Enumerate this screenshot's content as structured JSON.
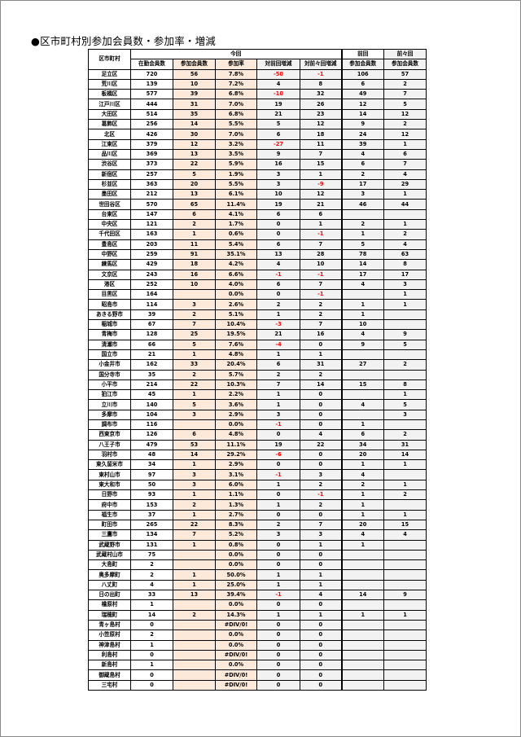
{
  "title": "●区市町村別参加会員数・参加率・増減",
  "header": {
    "municipality": "区市町村",
    "current": "今回",
    "previous": "前回",
    "before_previous": "前々回",
    "columns": [
      "在勤会員数",
      "参加会員数",
      "参加率",
      "対前回増減",
      "対前々回増減",
      "参加会員数",
      "参加会員数"
    ]
  },
  "colors": {
    "participation_fill": "#fde9d9",
    "change_fill": "#f2f2f2",
    "negative_text": "#ff0000"
  },
  "rows": [
    [
      "足立区",
      "720",
      "56",
      "7.8%",
      "-50",
      "-1",
      "106",
      "57"
    ],
    [
      "荒川区",
      "139",
      "10",
      "7.2%",
      "4",
      "8",
      "6",
      "2"
    ],
    [
      "板橋区",
      "577",
      "39",
      "6.8%",
      "-10",
      "32",
      "49",
      "7"
    ],
    [
      "江戸川区",
      "444",
      "31",
      "7.0%",
      "19",
      "26",
      "12",
      "5"
    ],
    [
      "大田区",
      "514",
      "35",
      "6.8%",
      "21",
      "23",
      "14",
      "12"
    ],
    [
      "葛飾区",
      "256",
      "14",
      "5.5%",
      "5",
      "12",
      "9",
      "2"
    ],
    [
      "北区",
      "426",
      "30",
      "7.0%",
      "6",
      "18",
      "24",
      "12"
    ],
    [
      "江東区",
      "379",
      "12",
      "3.2%",
      "-27",
      "11",
      "39",
      "1"
    ],
    [
      "品川区",
      "369",
      "13",
      "3.5%",
      "9",
      "7",
      "4",
      "6"
    ],
    [
      "渋谷区",
      "373",
      "22",
      "5.9%",
      "16",
      "15",
      "6",
      "7"
    ],
    [
      "新宿区",
      "257",
      "5",
      "1.9%",
      "3",
      "1",
      "2",
      "4"
    ],
    [
      "杉並区",
      "363",
      "20",
      "5.5%",
      "3",
      "-9",
      "17",
      "29"
    ],
    [
      "墨田区",
      "212",
      "13",
      "6.1%",
      "10",
      "12",
      "3",
      "1"
    ],
    [
      "世田谷区",
      "570",
      "65",
      "11.4%",
      "19",
      "21",
      "46",
      "44"
    ],
    [
      "台東区",
      "147",
      "6",
      "4.1%",
      "6",
      "6",
      "",
      ""
    ],
    [
      "中央区",
      "121",
      "2",
      "1.7%",
      "0",
      "1",
      "2",
      "1"
    ],
    [
      "千代田区",
      "163",
      "1",
      "0.6%",
      "0",
      "-1",
      "1",
      "2"
    ],
    [
      "豊島区",
      "203",
      "11",
      "5.4%",
      "6",
      "7",
      "5",
      "4"
    ],
    [
      "中野区",
      "259",
      "91",
      "35.1%",
      "13",
      "28",
      "78",
      "63"
    ],
    [
      "練馬区",
      "429",
      "18",
      "4.2%",
      "4",
      "10",
      "14",
      "8"
    ],
    [
      "文京区",
      "243",
      "16",
      "6.6%",
      "-1",
      "-1",
      "17",
      "17"
    ],
    [
      "港区",
      "252",
      "10",
      "4.0%",
      "6",
      "7",
      "4",
      "3"
    ],
    [
      "目黒区",
      "164",
      "",
      "0.0%",
      "0",
      "-1",
      "",
      "1"
    ],
    [
      "昭島市",
      "114",
      "3",
      "2.6%",
      "2",
      "2",
      "1",
      "1"
    ],
    [
      "あきる野市",
      "39",
      "2",
      "5.1%",
      "1",
      "2",
      "1",
      ""
    ],
    [
      "稲城市",
      "67",
      "7",
      "10.4%",
      "-3",
      "7",
      "10",
      ""
    ],
    [
      "青梅市",
      "128",
      "25",
      "19.5%",
      "21",
      "16",
      "4",
      "9"
    ],
    [
      "清瀬市",
      "66",
      "5",
      "7.6%",
      "-4",
      "0",
      "9",
      "5"
    ],
    [
      "国立市",
      "21",
      "1",
      "4.8%",
      "1",
      "1",
      "",
      ""
    ],
    [
      "小金井市",
      "162",
      "33",
      "20.4%",
      "6",
      "31",
      "27",
      "2"
    ],
    [
      "国分寺市",
      "35",
      "2",
      "5.7%",
      "2",
      "2",
      "",
      ""
    ],
    [
      "小平市",
      "214",
      "22",
      "10.3%",
      "7",
      "14",
      "15",
      "8"
    ],
    [
      "狛江市",
      "45",
      "1",
      "2.2%",
      "1",
      "0",
      "",
      "1"
    ],
    [
      "立川市",
      "140",
      "5",
      "3.6%",
      "1",
      "0",
      "4",
      "5"
    ],
    [
      "多摩市",
      "104",
      "3",
      "2.9%",
      "3",
      "0",
      "",
      "3"
    ],
    [
      "調布市",
      "116",
      "",
      "0.0%",
      "-1",
      "0",
      "1",
      ""
    ],
    [
      "西東京市",
      "126",
      "6",
      "4.8%",
      "0",
      "4",
      "6",
      "2"
    ],
    [
      "八王子市",
      "479",
      "53",
      "11.1%",
      "19",
      "22",
      "34",
      "31"
    ],
    [
      "羽村市",
      "48",
      "14",
      "29.2%",
      "-6",
      "0",
      "20",
      "14"
    ],
    [
      "東久留米市",
      "34",
      "1",
      "2.9%",
      "0",
      "0",
      "1",
      "1"
    ],
    [
      "東村山市",
      "97",
      "3",
      "3.1%",
      "-1",
      "3",
      "4",
      ""
    ],
    [
      "東大和市",
      "50",
      "3",
      "6.0%",
      "1",
      "2",
      "2",
      "1"
    ],
    [
      "日野市",
      "93",
      "1",
      "1.1%",
      "0",
      "-1",
      "1",
      "2"
    ],
    [
      "府中市",
      "153",
      "2",
      "1.3%",
      "1",
      "2",
      "1",
      ""
    ],
    [
      "福生市",
      "37",
      "1",
      "2.7%",
      "0",
      "0",
      "1",
      "1"
    ],
    [
      "町田市",
      "265",
      "22",
      "8.3%",
      "2",
      "7",
      "20",
      "15"
    ],
    [
      "三鷹市",
      "134",
      "7",
      "5.2%",
      "3",
      "3",
      "4",
      "4"
    ],
    [
      "武蔵野市",
      "131",
      "1",
      "0.8%",
      "0",
      "1",
      "1",
      ""
    ],
    [
      "武蔵村山市",
      "75",
      "",
      "0.0%",
      "0",
      "0",
      "",
      ""
    ],
    [
      "大島町",
      "2",
      "",
      "0.0%",
      "0",
      "0",
      "",
      ""
    ],
    [
      "奥多摩町",
      "2",
      "1",
      "50.0%",
      "1",
      "1",
      "",
      ""
    ],
    [
      "八丈町",
      "4",
      "1",
      "25.0%",
      "1",
      "1",
      "",
      ""
    ],
    [
      "日の出町",
      "33",
      "13",
      "39.4%",
      "-1",
      "4",
      "14",
      "9"
    ],
    [
      "檜原村",
      "1",
      "",
      "0.0%",
      "0",
      "0",
      "",
      ""
    ],
    [
      "瑞穂町",
      "14",
      "2",
      "14.3%",
      "1",
      "1",
      "1",
      "1"
    ],
    [
      "青ヶ島村",
      "0",
      "",
      "#DIV/0!",
      "0",
      "0",
      "",
      ""
    ],
    [
      "小笠原村",
      "2",
      "",
      "0.0%",
      "0",
      "0",
      "",
      ""
    ],
    [
      "神津島村",
      "1",
      "",
      "0.0%",
      "0",
      "0",
      "",
      ""
    ],
    [
      "利島村",
      "0",
      "",
      "#DIV/0!",
      "0",
      "0",
      "",
      ""
    ],
    [
      "新島村",
      "1",
      "",
      "0.0%",
      "0",
      "0",
      "",
      ""
    ],
    [
      "御蔵島村",
      "0",
      "",
      "#DIV/0!",
      "0",
      "0",
      "",
      ""
    ],
    [
      "三宅村",
      "0",
      "",
      "#DIV/0!",
      "0",
      "0",
      "",
      ""
    ]
  ]
}
